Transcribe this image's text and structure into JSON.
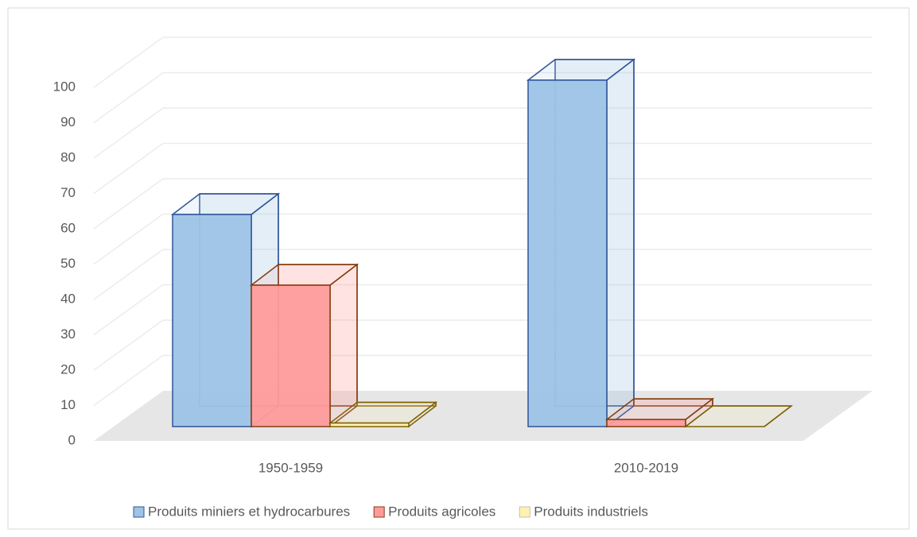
{
  "chart_data": {
    "type": "bar3d",
    "categories": [
      "1950-1959",
      "2010-2019"
    ],
    "series": [
      {
        "name": "Produits miniers et hydrocarbures",
        "color": "#9dc3e6",
        "edge_color": "#2f5597",
        "values": [
          60,
          98
        ]
      },
      {
        "name": "Produits agricoles",
        "color": "#ff9b9b",
        "edge_color": "#843c0c",
        "values": [
          40,
          2
        ]
      },
      {
        "name": "Produits industriels",
        "color": "#fff2b0",
        "edge_color": "#7f6000",
        "values": [
          1,
          0
        ]
      }
    ],
    "ylim": [
      0,
      100
    ],
    "yticks": [
      0,
      10,
      20,
      30,
      40,
      50,
      60,
      70,
      80,
      90,
      100
    ],
    "grid": true,
    "legend": "bottom"
  }
}
